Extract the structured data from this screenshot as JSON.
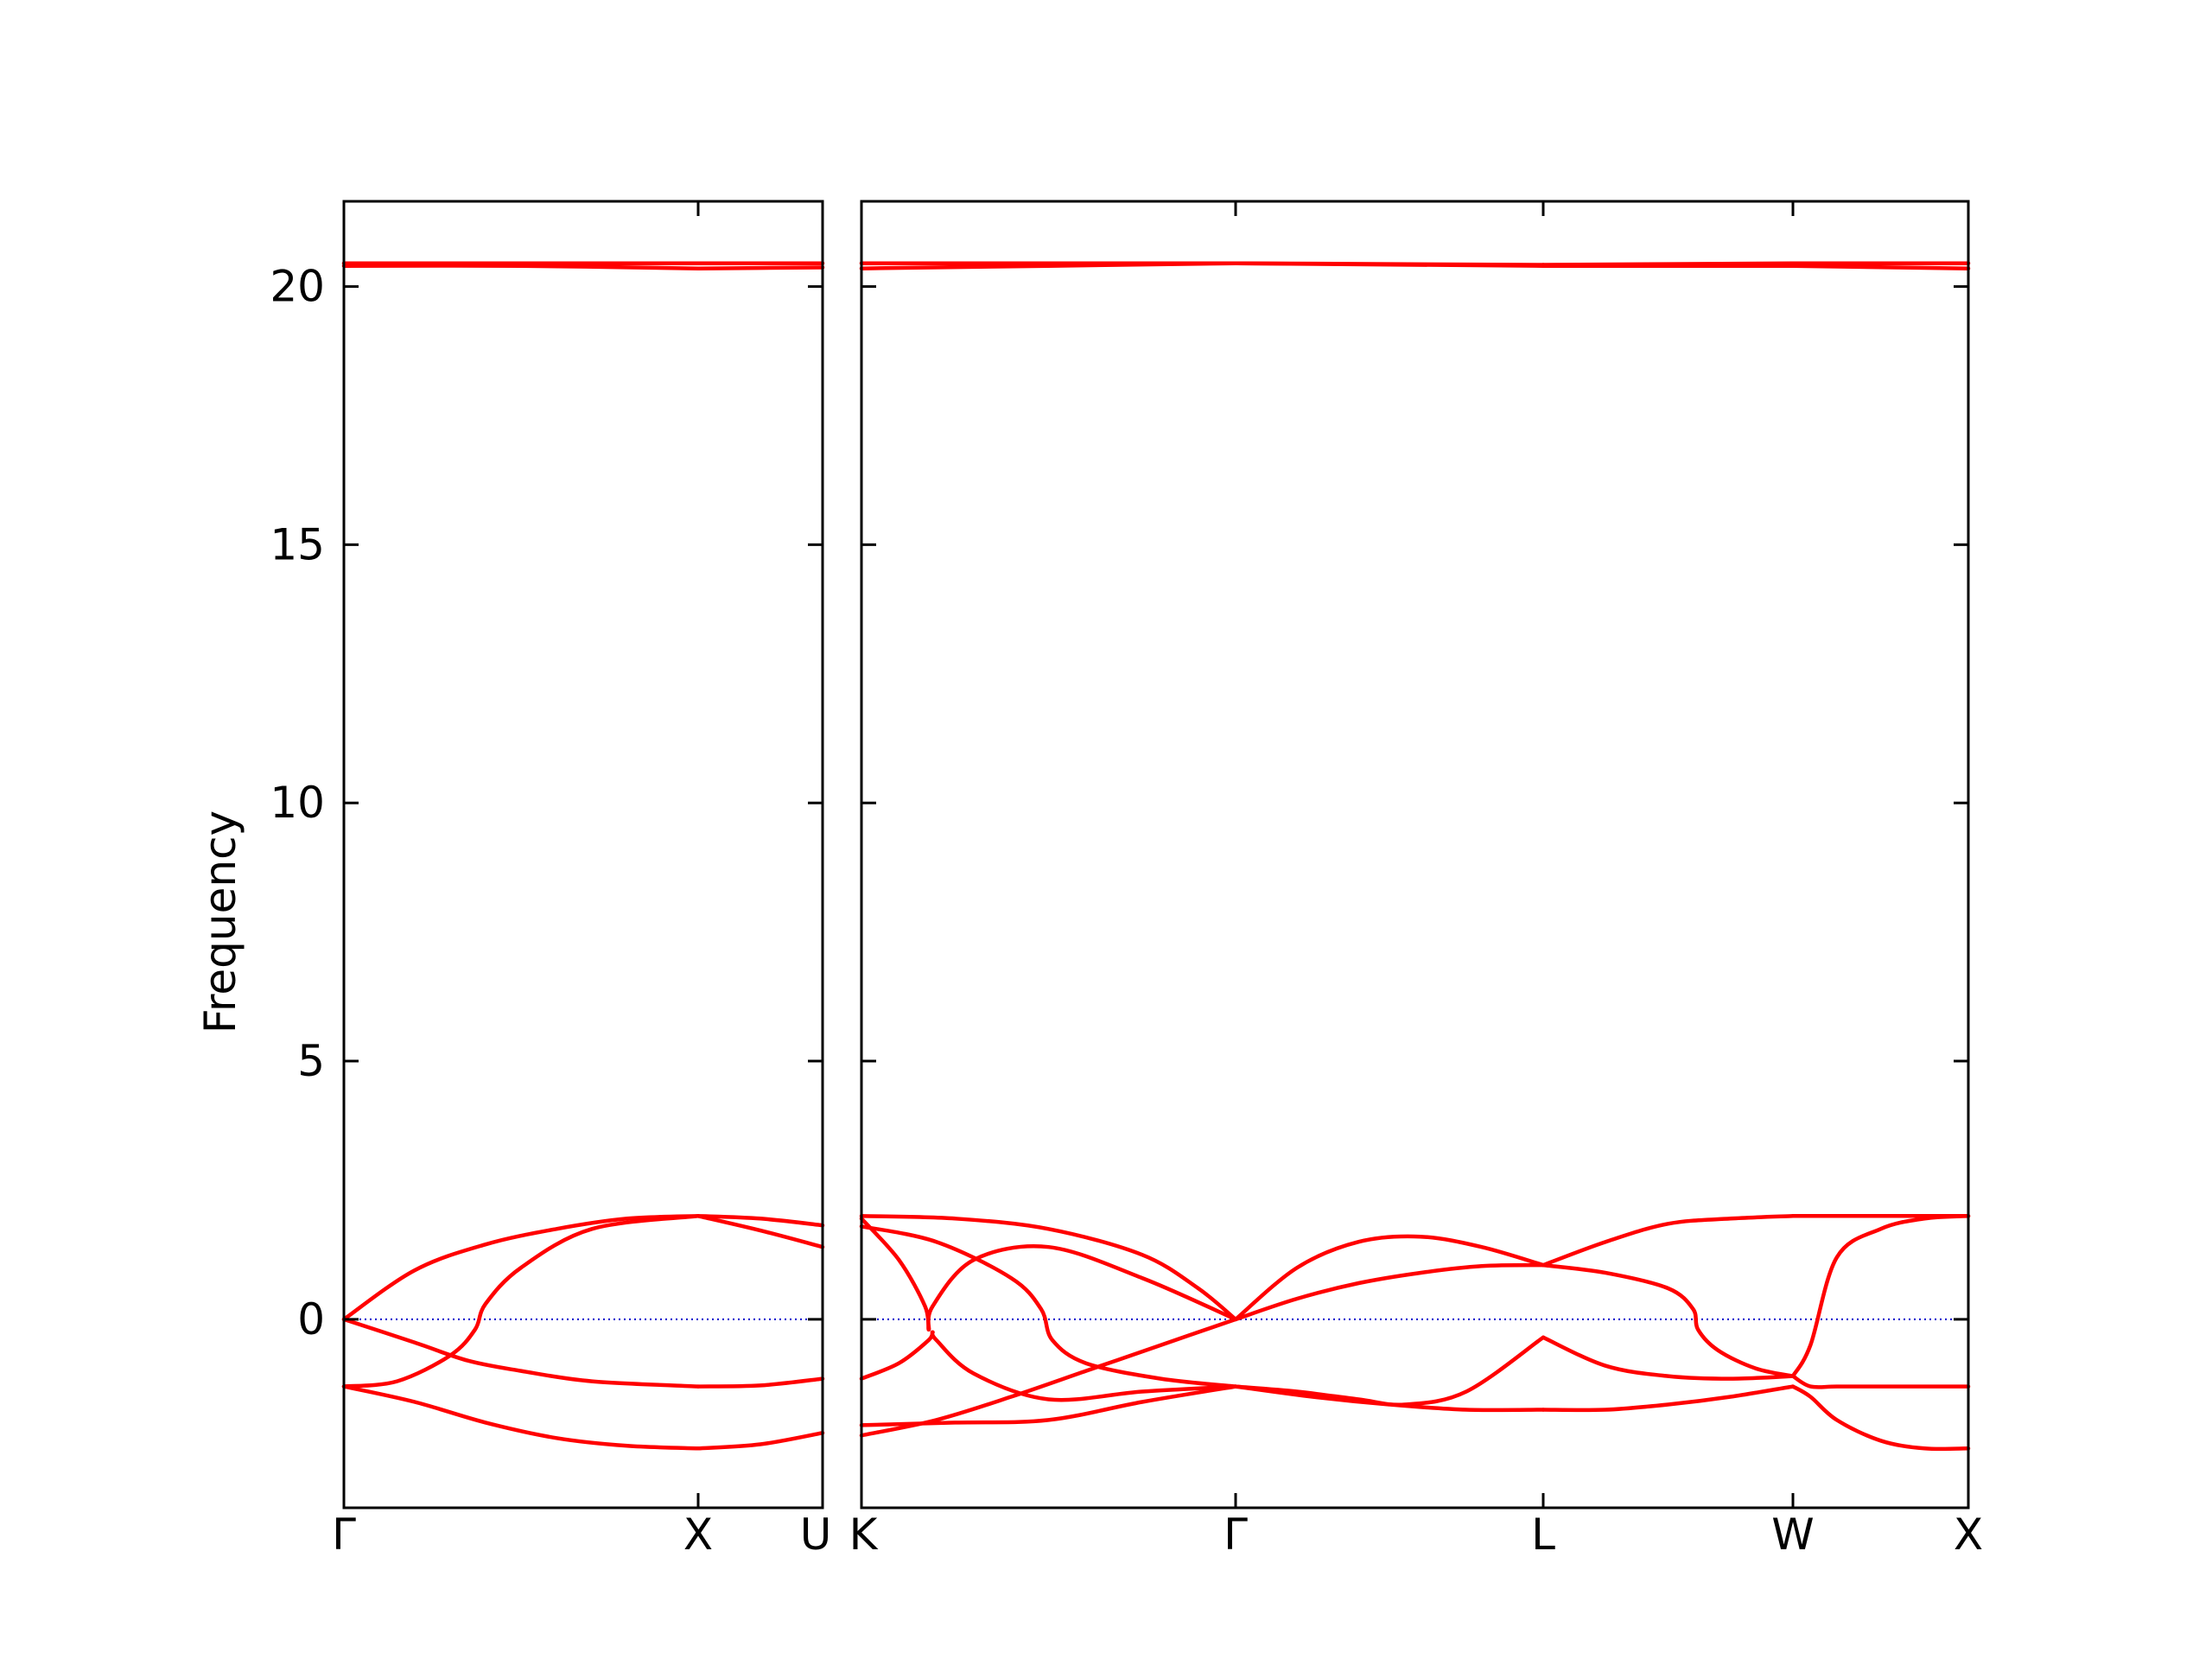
{
  "chart_data": {
    "type": "line",
    "ylabel": "Frequency",
    "ylim": [
      -3.65,
      21.65
    ],
    "yticks": [
      0,
      5,
      10,
      15,
      20
    ],
    "colors": {
      "bands": "#ff0000",
      "zero_line": "#0000cc",
      "axes": "#000000"
    },
    "zero_line_style": "dotted",
    "panels": [
      {
        "x_labels": [
          "Γ",
          "X",
          "U"
        ],
        "segments": [
          {
            "from": "Γ",
            "to": "X",
            "bands": [
              {
                "x": [
                  0,
                  0.2,
                  0.4,
                  0.6,
                  0.8,
                  1
                ],
                "values": [
                  -1.3,
                  -1.6,
                  -2.0,
                  -2.3,
                  -2.45,
                  -2.5
                ]
              },
              {
                "x": [
                  0,
                  0.2,
                  0.35,
                  0.5,
                  0.7,
                  1
                ],
                "values": [
                  0.0,
                  -0.45,
                  -0.8,
                  -1.0,
                  -1.2,
                  -1.3
                ]
              },
              {
                "x": [
                  0,
                  0.15,
                  0.3,
                  0.37,
                  0.4,
                  0.5,
                  0.7,
                  1
                ],
                "values": [
                  -1.3,
                  -1.2,
                  -0.7,
                  -0.2,
                  0.3,
                  1.0,
                  1.75,
                  2.0
                ]
              },
              {
                "x": [
                  0,
                  0.2,
                  0.4,
                  0.6,
                  0.8,
                  1
                ],
                "values": [
                  0.0,
                  0.95,
                  1.45,
                  1.75,
                  1.95,
                  2.0
                ]
              },
              {
                "x": [
                  0,
                  0.5,
                  1
                ],
                "values": [
                  20.4,
                  20.4,
                  20.35
                ]
              },
              {
                "x": [
                  0,
                  0.5,
                  1
                ],
                "values": [
                  20.45,
                  20.45,
                  20.45
                ]
              }
            ]
          },
          {
            "from": "X",
            "to": "U",
            "bands": [
              {
                "x": [
                  0,
                  0.5,
                  1
                ],
                "values": [
                  -2.5,
                  -2.42,
                  -2.2
                ]
              },
              {
                "x": [
                  0,
                  0.5,
                  1
                ],
                "values": [
                  -1.3,
                  -1.28,
                  -1.15
                ]
              },
              {
                "x": [
                  0,
                  0.5,
                  1
                ],
                "values": [
                  2.0,
                  1.72,
                  1.4
                ]
              },
              {
                "x": [
                  0,
                  0.5,
                  1
                ],
                "values": [
                  2.0,
                  1.95,
                  1.82
                ]
              },
              {
                "x": [
                  0,
                  1
                ],
                "values": [
                  20.35,
                  20.37
                ]
              },
              {
                "x": [
                  0,
                  1
                ],
                "values": [
                  20.45,
                  20.45
                ]
              }
            ]
          }
        ]
      },
      {
        "x_labels": [
          "K",
          "Γ",
          "L",
          "W",
          "X"
        ],
        "segments": [
          {
            "from": "K",
            "to": "Γ",
            "bands": [
              {
                "x": [
                  0,
                  0.1,
                  0.18,
                  0.19,
                  0.2,
                  0.3,
                  0.5,
                  0.75,
                  1
                ],
                "values": [
                  -1.15,
                  -0.85,
                  -0.4,
                  -0.25,
                  -0.4,
                  -1.05,
                  -1.55,
                  -1.4,
                  -1.3
                ]
              },
              {
                "x": [
                  0,
                  0.1,
                  0.17,
                  0.18,
                  0.19,
                  0.3,
                  0.5,
                  0.75,
                  1
                ],
                "values": [
                  1.95,
                  1.15,
                  0.25,
                  -0.2,
                  0.25,
                  1.15,
                  1.4,
                  0.8,
                  0.0
                ]
              },
              {
                "x": [
                  0,
                  0.2,
                  0.4,
                  0.48,
                  0.51,
                  0.6,
                  0.8,
                  1
                ],
                "values": [
                  1.8,
                  1.5,
                  0.8,
                  0.2,
                  -0.4,
                  -0.85,
                  -1.15,
                  -1.3
                ]
              },
              {
                "x": [
                  0,
                  0.25,
                  0.5,
                  0.75,
                  0.9,
                  1
                ],
                "values": [
                  2.0,
                  1.95,
                  1.75,
                  1.25,
                  0.6,
                  0.0
                ]
              },
              {
                "x": [
                  0,
                  0.25,
                  0.5,
                  0.75,
                  1
                ],
                "values": [
                  -2.05,
                  -2.0,
                  -1.95,
                  -1.6,
                  -1.3
                ]
              },
              {
                "x": [
                  0,
                  0.2,
                  0.4,
                  0.6,
                  0.8,
                  1
                ],
                "values": [
                  -2.25,
                  -1.95,
                  -1.5,
                  -1.0,
                  -0.5,
                  0.0
                ]
              },
              {
                "x": [
                  0,
                  1
                ],
                "values": [
                  20.35,
                  20.45
                ]
              },
              {
                "x": [
                  0,
                  1
                ],
                "values": [
                  20.45,
                  20.45
                ]
              }
            ]
          },
          {
            "from": "Γ",
            "to": "L",
            "bands": [
              {
                "x": [
                  0,
                  0.2,
                  0.4,
                  0.55,
                  0.75,
                  1
                ],
                "values": [
                  -1.3,
                  -1.4,
                  -1.55,
                  -1.65,
                  -1.4,
                  -0.35
                ]
              },
              {
                "x": [
                  0,
                  0.25,
                  0.5,
                  0.75,
                  1
                ],
                "values": [
                  -1.3,
                  -1.5,
                  -1.65,
                  -1.75,
                  -1.75
                ]
              },
              {
                "x": [
                  0,
                  0.2,
                  0.4,
                  0.6,
                  0.8,
                  1
                ],
                "values": [
                  0.0,
                  0.4,
                  0.7,
                  0.9,
                  1.03,
                  1.05
                ]
              },
              {
                "x": [
                  0,
                  0.2,
                  0.4,
                  0.6,
                  0.8,
                  1
                ],
                "values": [
                  0.0,
                  1.0,
                  1.5,
                  1.6,
                  1.4,
                  1.05
                ]
              },
              {
                "x": [
                  0,
                  1
                ],
                "values": [
                  20.45,
                  20.4
                ]
              },
              {
                "x": [
                  0,
                  1
                ],
                "values": [
                  20.45,
                  20.42
                ]
              }
            ]
          },
          {
            "from": "L",
            "to": "W",
            "bands": [
              {
                "x": [
                  0,
                  0.25,
                  0.5,
                  0.75,
                  1
                ],
                "values": [
                  -0.35,
                  -0.9,
                  -1.1,
                  -1.15,
                  -1.1
                ]
              },
              {
                "x": [
                  0,
                  0.25,
                  0.5,
                  0.75,
                  1
                ],
                "values": [
                  -1.75,
                  -1.75,
                  -1.65,
                  -1.5,
                  -1.3
                ]
              },
              {
                "x": [
                  0,
                  0.25,
                  0.5,
                  0.6,
                  0.62,
                  0.7,
                  0.85,
                  1
                ],
                "values": [
                  1.05,
                  0.9,
                  0.6,
                  0.2,
                  -0.2,
                  -0.6,
                  -0.95,
                  -1.1
                ]
              },
              {
                "x": [
                  0,
                  0.25,
                  0.5,
                  0.75,
                  1
                ],
                "values": [
                  1.05,
                  1.5,
                  1.85,
                  1.95,
                  2.0
                ]
              },
              {
                "x": [
                  0,
                  1
                ],
                "values": [
                  20.4,
                  20.4
                ]
              },
              {
                "x": [
                  0,
                  1
                ],
                "values": [
                  20.42,
                  20.45
                ]
              }
            ]
          },
          {
            "from": "W",
            "to": "X",
            "bands": [
              {
                "x": [
                  0,
                  0.1,
                  0.25,
                  0.5,
                  0.75,
                  1
                ],
                "values": [
                  -1.1,
                  -0.5,
                  1.2,
                  1.75,
                  1.95,
                  2.0
                ]
              },
              {
                "x": [
                  0,
                  0.1,
                  0.25,
                  0.5,
                  0.75,
                  1
                ],
                "values": [
                  -1.1,
                  -1.3,
                  -1.3,
                  -1.3,
                  -1.3,
                  -1.3
                ]
              },
              {
                "x": [
                  0,
                  0.1,
                  0.25,
                  0.5,
                  0.75,
                  1
                ],
                "values": [
                  -1.3,
                  -1.5,
                  -1.95,
                  -2.35,
                  -2.5,
                  -2.5
                ]
              },
              {
                "x": [
                  0,
                  0.5,
                  1
                ],
                "values": [
                  2.0,
                  2.0,
                  2.0
                ]
              },
              {
                "x": [
                  0,
                  1
                ],
                "values": [
                  20.4,
                  20.35
                ]
              },
              {
                "x": [
                  0,
                  1
                ],
                "values": [
                  20.45,
                  20.45
                ]
              }
            ]
          }
        ]
      }
    ]
  }
}
